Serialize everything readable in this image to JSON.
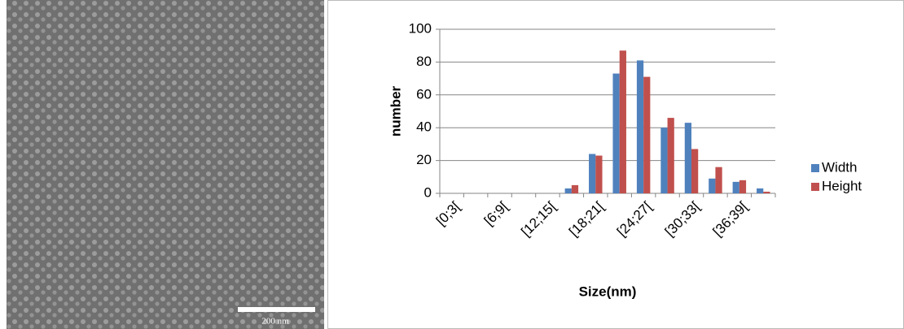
{
  "micrograph": {
    "scale_label": "200 nm"
  },
  "chart_data": {
    "type": "bar",
    "x_label": "Size(nm)",
    "y_label": "number",
    "categories": [
      "[0;3[",
      null,
      "[6;9[",
      null,
      "[12;15[",
      null,
      "[18;21[",
      null,
      "[24;27[",
      null,
      "[30;33[",
      null,
      "[36;39[",
      null
    ],
    "series": [
      {
        "name": "Width",
        "color": "#4f81bd",
        "values": [
          0,
          0,
          0,
          0,
          0,
          3,
          24,
          73,
          81,
          40,
          43,
          9,
          7,
          3
        ]
      },
      {
        "name": "Height",
        "color": "#c0504d",
        "values": [
          0,
          0,
          0,
          0,
          0,
          5,
          23,
          87,
          71,
          46,
          27,
          16,
          8,
          1
        ]
      }
    ],
    "ylim": [
      0,
      100
    ],
    "yticks": [
      0,
      20,
      40,
      60,
      80,
      100
    ],
    "grid": true,
    "legend": "right"
  }
}
